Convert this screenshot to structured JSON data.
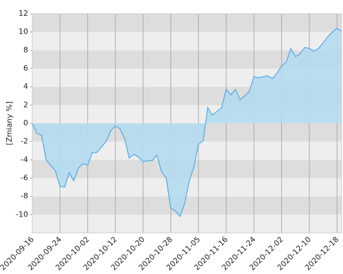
{
  "chart_data": {
    "type": "area",
    "y_label": "[Zmiany %]",
    "categories": [
      "2020-09-16",
      null,
      null,
      null,
      null,
      null,
      "2020-09-24",
      null,
      null,
      null,
      null,
      null,
      "2020-10-02",
      null,
      null,
      null,
      null,
      null,
      "2020-10-12",
      null,
      null,
      null,
      null,
      null,
      "2020-10-20",
      null,
      null,
      null,
      null,
      null,
      "2020-10-28",
      null,
      null,
      null,
      null,
      null,
      "2020-11-05",
      null,
      null,
      null,
      null,
      null,
      "2020-11-16",
      null,
      null,
      null,
      null,
      null,
      "2020-11-24",
      null,
      null,
      null,
      null,
      null,
      "2020-12-02",
      null,
      null,
      null,
      null,
      null,
      "2020-12-10",
      null,
      null,
      null,
      null,
      null,
      "2020-12-18",
      null
    ],
    "values": [
      0,
      -1.1,
      -1.3,
      -4.0,
      -4.6,
      -5.2,
      -6.9,
      -7.0,
      -5.4,
      -6.3,
      -4.9,
      -4.4,
      -4.6,
      -3.2,
      -3.2,
      -2.6,
      -2.0,
      -0.8,
      -0.3,
      -0.6,
      -1.7,
      -3.8,
      -3.4,
      -3.7,
      -4.2,
      -4.1,
      -4.1,
      -3.5,
      -5.3,
      -6.0,
      -9.3,
      -9.6,
      -10.2,
      -8.8,
      -6.3,
      -4.8,
      -2.3,
      -1.9,
      1.7,
      0.9,
      1.3,
      1.7,
      3.7,
      3.1,
      3.7,
      2.6,
      3.0,
      3.5,
      5.1,
      5.0,
      5.1,
      5.2,
      4.9,
      5.5,
      6.3,
      6.7,
      8.2,
      7.3,
      7.6,
      8.3,
      8.2,
      7.9,
      8.2,
      8.8,
      9.5,
      10.0,
      10.4,
      10.1
    ],
    "color": "#4da6e8",
    "fill": "#b4dcee",
    "ylim": [
      -12,
      12
    ],
    "yticks": [
      -10,
      -8,
      -6,
      -4,
      -2,
      0,
      2,
      4,
      6,
      8,
      10,
      12
    ],
    "grid": true
  }
}
